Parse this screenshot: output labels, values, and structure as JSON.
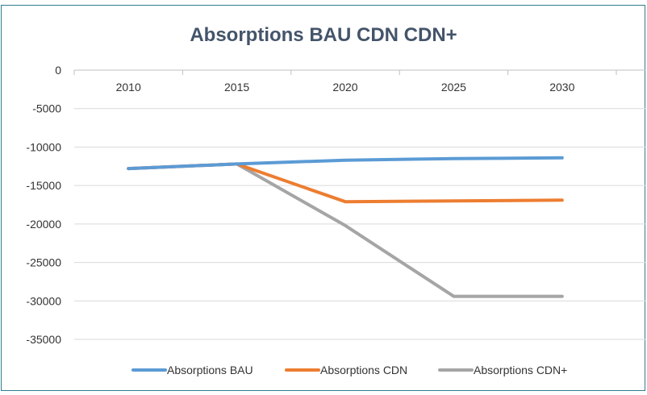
{
  "chart_data": {
    "type": "line",
    "title": "Absorptions BAU CDN CDN+",
    "xlabel": "",
    "ylabel": "",
    "categories": [
      "2010",
      "2015",
      "2020",
      "2025",
      "2030"
    ],
    "ylim": [
      -35000,
      0
    ],
    "yticks": [
      0,
      -5000,
      -10000,
      -15000,
      -20000,
      -25000,
      -30000,
      -35000
    ],
    "ytick_labels": [
      "0",
      "-5000",
      "-10000",
      "-15000",
      "-20000",
      "-25000",
      "-30000",
      "-35000"
    ],
    "grid": true,
    "legend_position": "bottom",
    "series": [
      {
        "name": "Absorptions BAU",
        "color": "#5b9bd5",
        "values": [
          -12800,
          -12200,
          -11700,
          -11500,
          -11400
        ]
      },
      {
        "name": "Absorptions CDN",
        "color": "#ed7d31",
        "values": [
          -12800,
          -12200,
          -17100,
          -17000,
          -16900
        ]
      },
      {
        "name": "Absorptions CDN+",
        "color": "#a5a5a5",
        "values": [
          -12800,
          -12200,
          -20200,
          -29400,
          -29400
        ]
      }
    ]
  }
}
